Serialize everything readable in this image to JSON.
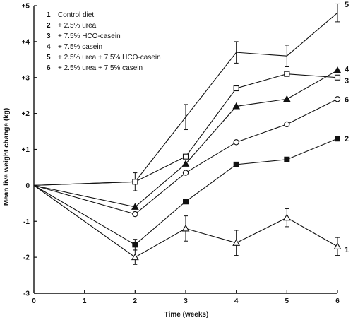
{
  "chart_data": {
    "type": "line",
    "xlabel": "Time (weeks)",
    "ylabel": "Mean live weight change (kg)",
    "xlim": [
      0,
      6
    ],
    "ylim": [
      -3,
      5
    ],
    "xticks": [
      "0",
      "1",
      "2",
      "3",
      "4",
      "5",
      "6"
    ],
    "yticks": [
      "-3",
      "-2",
      "-1",
      "0",
      "+1",
      "+2",
      "+3",
      "+4",
      "+5"
    ],
    "grid": false,
    "legend_position": "top-left",
    "legend": [
      {
        "num": "1",
        "text": "Control diet"
      },
      {
        "num": "2",
        "text": "+ 2.5% urea"
      },
      {
        "num": "3",
        "text": "+ 7.5% HCO-casein"
      },
      {
        "num": "4",
        "text": "+ 7.5% casein"
      },
      {
        "num": "5",
        "text": "+ 2.5% urea + 7.5% HCO-casein"
      },
      {
        "num": "6",
        "text": "+ 2.5% urea + 7.5% casein"
      }
    ],
    "series": [
      {
        "label": "5",
        "marker": "none",
        "x": [
          0,
          2,
          3,
          4,
          5,
          6
        ],
        "y": [
          0,
          0.1,
          1.9,
          3.7,
          3.6,
          4.8
        ],
        "err": [
          0,
          0.25,
          0.35,
          0.3,
          0.3,
          0.25
        ]
      },
      {
        "label": "4",
        "marker": "filled-triangle",
        "x": [
          0,
          2,
          3,
          4,
          5,
          6
        ],
        "y": [
          0,
          -0.6,
          0.6,
          2.2,
          2.4,
          3.2
        ],
        "err": [
          0,
          0,
          0,
          0,
          0,
          0
        ]
      },
      {
        "label": "3",
        "marker": "open-square",
        "x": [
          0,
          2,
          3,
          4,
          5,
          6
        ],
        "y": [
          0,
          0.1,
          0.8,
          2.7,
          3.1,
          3.0
        ],
        "err": [
          0,
          0,
          0,
          0,
          0,
          0
        ]
      },
      {
        "label": "6",
        "marker": "open-circle",
        "x": [
          0,
          2,
          3,
          4,
          5,
          6
        ],
        "y": [
          0,
          -0.8,
          0.35,
          1.2,
          1.7,
          2.4
        ],
        "err": [
          0,
          0,
          0,
          0,
          0,
          0
        ]
      },
      {
        "label": "2",
        "marker": "filled-square",
        "x": [
          0,
          2,
          3,
          4,
          5,
          6
        ],
        "y": [
          0,
          -1.65,
          -0.45,
          0.58,
          0.72,
          1.3
        ],
        "err": [
          0,
          0.15,
          0,
          0,
          0,
          0
        ]
      },
      {
        "label": "1",
        "marker": "open-triangle",
        "x": [
          0,
          2,
          3,
          4,
          5,
          6
        ],
        "y": [
          0,
          -2.0,
          -1.2,
          -1.6,
          -0.9,
          -1.7
        ],
        "err": [
          0,
          0.2,
          0.35,
          0.35,
          0.25,
          0.25
        ]
      }
    ]
  }
}
